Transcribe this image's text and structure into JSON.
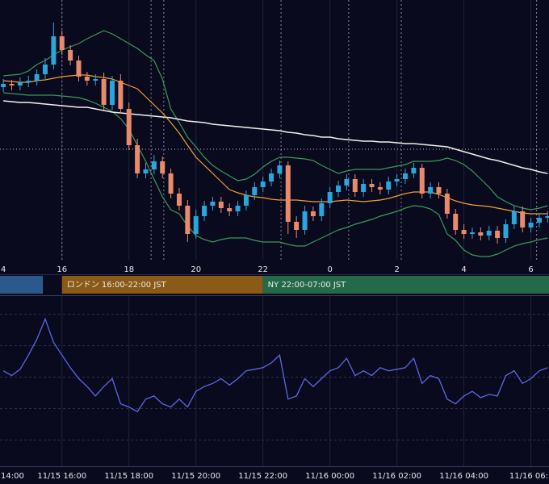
{
  "chart_data": [
    {
      "type": "candlestick",
      "x": [
        14.25,
        14.5,
        14.75,
        15,
        15.25,
        15.5,
        15.75,
        16,
        16.25,
        16.5,
        16.75,
        17,
        17.25,
        17.5,
        17.75,
        18,
        18.25,
        18.5,
        18.75,
        19,
        19.25,
        19.5,
        19.75,
        20,
        20.25,
        20.5,
        20.75,
        21,
        21.25,
        21.5,
        21.75,
        22,
        22.25,
        22.5,
        22.75,
        23,
        23.25,
        23.5,
        23.75,
        24,
        24.25,
        24.5,
        24.75,
        25,
        25.25,
        25.5,
        25.75,
        26,
        26.25,
        26.5,
        26.75,
        27,
        27.25,
        27.5,
        27.75,
        28,
        28.25,
        28.5,
        28.75,
        29,
        29.25,
        29.5,
        29.75,
        30,
        30.25,
        30.5
      ],
      "open": [
        222,
        226,
        224,
        228,
        230,
        238,
        250,
        285,
        268,
        255,
        235,
        230,
        232,
        200,
        230,
        195,
        150,
        115,
        120,
        130,
        115,
        90,
        75,
        40,
        62,
        75,
        80,
        72,
        68,
        75,
        88,
        98,
        105,
        115,
        125,
        55,
        45,
        68,
        62,
        78,
        92,
        100,
        108,
        92,
        102,
        98,
        95,
        105,
        108,
        115,
        122,
        90,
        98,
        90,
        65,
        45,
        40,
        42,
        38,
        44,
        35,
        52,
        68,
        48,
        54,
        60
      ],
      "high": [
        232,
        231,
        234,
        236,
        244,
        258,
        302,
        292,
        274,
        261,
        241,
        238,
        240,
        236,
        238,
        203,
        158,
        128,
        138,
        136,
        121,
        97,
        82,
        70,
        81,
        86,
        86,
        78,
        81,
        94,
        104,
        111,
        121,
        131,
        130,
        62,
        75,
        74,
        84,
        98,
        106,
        114,
        114,
        108,
        108,
        104,
        111,
        114,
        121,
        128,
        127,
        104,
        104,
        96,
        71,
        52,
        48,
        48,
        50,
        50,
        58,
        75,
        74,
        60,
        66,
        68
      ],
      "low": [
        216,
        218,
        218,
        222,
        224,
        232,
        244,
        262,
        249,
        229,
        224,
        224,
        194,
        194,
        189,
        144,
        109,
        109,
        114,
        109,
        84,
        69,
        30,
        34,
        56,
        69,
        66,
        62,
        62,
        69,
        82,
        92,
        99,
        109,
        40,
        35,
        39,
        56,
        56,
        72,
        86,
        94,
        86,
        86,
        92,
        89,
        89,
        99,
        102,
        109,
        84,
        84,
        84,
        59,
        39,
        34,
        34,
        32,
        32,
        28,
        29,
        46,
        42,
        42,
        48,
        54
      ],
      "close": [
        226,
        224,
        228,
        230,
        238,
        250,
        285,
        268,
        255,
        235,
        230,
        232,
        200,
        230,
        195,
        150,
        115,
        120,
        130,
        115,
        90,
        75,
        40,
        62,
        75,
        80,
        72,
        68,
        75,
        88,
        98,
        105,
        115,
        125,
        55,
        45,
        68,
        62,
        78,
        92,
        100,
        108,
        92,
        102,
        98,
        95,
        105,
        108,
        115,
        122,
        90,
        98,
        90,
        65,
        45,
        40,
        42,
        38,
        44,
        35,
        52,
        68,
        48,
        54,
        60,
        62
      ],
      "up_color": "#2aa6dc",
      "down_color": "#e88a6c",
      "lines": [
        {
          "color": "#3a9a5a",
          "values": [
            236,
            237,
            238,
            242,
            250,
            255,
            262,
            268,
            272,
            276,
            282,
            287,
            292,
            288,
            282,
            276,
            270,
            262,
            255,
            232,
            195,
            178,
            160,
            148,
            135,
            125,
            118,
            112,
            106,
            108,
            114,
            123,
            130,
            135,
            135,
            134,
            133,
            131,
            125,
            120,
            115,
            118,
            120,
            120,
            120,
            120,
            122,
            124,
            126,
            130,
            130,
            130,
            131,
            134,
            131,
            126,
            118,
            108,
            98,
            86,
            80,
            75,
            72,
            70,
            72,
            75
          ]
        },
        {
          "color": "#3a9a5a",
          "values": [
            215,
            214,
            213,
            212,
            212,
            212,
            212,
            211,
            210,
            209,
            206,
            202,
            197,
            192,
            183,
            170,
            150,
            130,
            108,
            86,
            70,
            65,
            50,
            38,
            33,
            30,
            33,
            35,
            35,
            35,
            32,
            30,
            30,
            30,
            27,
            25,
            25,
            30,
            35,
            40,
            45,
            48,
            52,
            55,
            58,
            62,
            65,
            68,
            72,
            75,
            74,
            71,
            64,
            40,
            32,
            20,
            14,
            12,
            12,
            15,
            20,
            25,
            28,
            30,
            33,
            35
          ]
        },
        {
          "color": "#f0f0f0",
          "values": [
            205,
            204,
            203,
            203,
            202,
            201,
            200,
            199,
            198,
            197,
            197,
            195,
            193,
            191,
            190,
            189,
            188,
            187,
            186,
            185,
            184,
            182,
            180,
            179,
            178,
            176,
            175,
            174,
            173,
            172,
            171,
            170,
            169,
            168,
            166,
            165,
            163,
            162,
            160,
            160,
            158,
            157,
            156,
            155,
            155,
            154,
            154,
            153,
            152,
            152,
            151,
            150,
            149,
            148,
            145,
            142,
            139,
            136,
            133,
            131,
            128,
            125,
            122,
            120,
            117,
            115
          ]
        },
        {
          "color": "#f0a030",
          "values": [
            230,
            229,
            228,
            228,
            230,
            231,
            233,
            235,
            236,
            237,
            237,
            235,
            234,
            232,
            228,
            224,
            220,
            210,
            200,
            190,
            178,
            165,
            150,
            135,
            125,
            115,
            105,
            95,
            91,
            88,
            86,
            85,
            83,
            82,
            82,
            82,
            81,
            80,
            80,
            80,
            81,
            82,
            81,
            80,
            81,
            82,
            84,
            87,
            90,
            92,
            92,
            92,
            89,
            85,
            81,
            78,
            76,
            75,
            74,
            72,
            70,
            68,
            66,
            65,
            65,
            65
          ]
        }
      ],
      "xlim": [
        14.15,
        30.54
      ],
      "ylim": [
        0,
        330
      ],
      "xticks": [
        {
          "value": 14,
          "label": "4"
        },
        16,
        18,
        20,
        22,
        {
          "value": 24,
          "label": "0"
        },
        {
          "value": 26,
          "label": "2"
        },
        {
          "value": 28,
          "label": "4"
        },
        {
          "value": 30,
          "label": "6"
        }
      ],
      "markers": [
        16.0,
        18.66,
        19.04,
        22.54,
        24.56,
        26.13,
        30.17
      ],
      "price_line": 145,
      "sessions": [
        {
          "start": 9,
          "end": 15.43,
          "color": "#2b5a8a"
        },
        {
          "start": 16,
          "end": 22,
          "color": "#8a5a16",
          "label": "ロンドン 16:00-22:00 JST"
        },
        {
          "start": 22,
          "end": 31,
          "color": "#256a48",
          "label": "NY 22:00-07:00 JST"
        }
      ]
    },
    {
      "type": "line",
      "x": [
        14.25,
        14.5,
        14.75,
        15,
        15.25,
        15.5,
        15.75,
        16,
        16.25,
        16.5,
        16.75,
        17,
        17.25,
        17.5,
        17.75,
        18,
        18.25,
        18.5,
        18.75,
        19,
        19.25,
        19.5,
        19.75,
        20,
        20.25,
        20.5,
        20.75,
        21,
        21.25,
        21.5,
        21.75,
        22,
        22.25,
        22.5,
        22.75,
        23,
        23.25,
        23.5,
        23.75,
        24,
        24.25,
        24.5,
        24.75,
        25,
        25.25,
        25.5,
        25.75,
        26,
        26.25,
        26.5,
        26.75,
        27,
        27.25,
        27.5,
        27.75,
        28,
        28.25,
        28.5,
        28.75,
        29,
        29.25,
        29.5,
        29.75,
        30,
        30.25,
        30.5
      ],
      "values": [
        54,
        51,
        55,
        64,
        74,
        87,
        72,
        64,
        56,
        49,
        44,
        38,
        44,
        49,
        33,
        31,
        28,
        36,
        38,
        33,
        31,
        36,
        31,
        41,
        44,
        46,
        49,
        45,
        49,
        54,
        55,
        56,
        59,
        64,
        36,
        38,
        49,
        44,
        49,
        54,
        56,
        62,
        51,
        54,
        51,
        56,
        54,
        55,
        56,
        62,
        46,
        51,
        49,
        36,
        33,
        38,
        41,
        37,
        39,
        38,
        51,
        54,
        46,
        49,
        54,
        56
      ],
      "color": "#5b68e6",
      "xlim": [
        14.15,
        30.54
      ],
      "ylim": [
        0,
        100
      ],
      "levels": [
        10,
        30,
        50,
        70,
        90
      ],
      "xticks": [
        {
          "value": 14,
          "label": "14:00"
        },
        {
          "value": 16,
          "label": "11/15 16:00"
        },
        {
          "value": 18,
          "label": "11/15 18:00"
        },
        {
          "value": 20,
          "label": "11/15 20:00"
        },
        {
          "value": 22,
          "label": "11/15 22:00"
        },
        {
          "value": 24,
          "label": "11/16 00:00"
        },
        {
          "value": 26,
          "label": "11/16 02:00"
        },
        {
          "value": 28,
          "label": "11/16 04:00"
        },
        {
          "value": 30,
          "label": "11/16 06:"
        }
      ]
    }
  ]
}
